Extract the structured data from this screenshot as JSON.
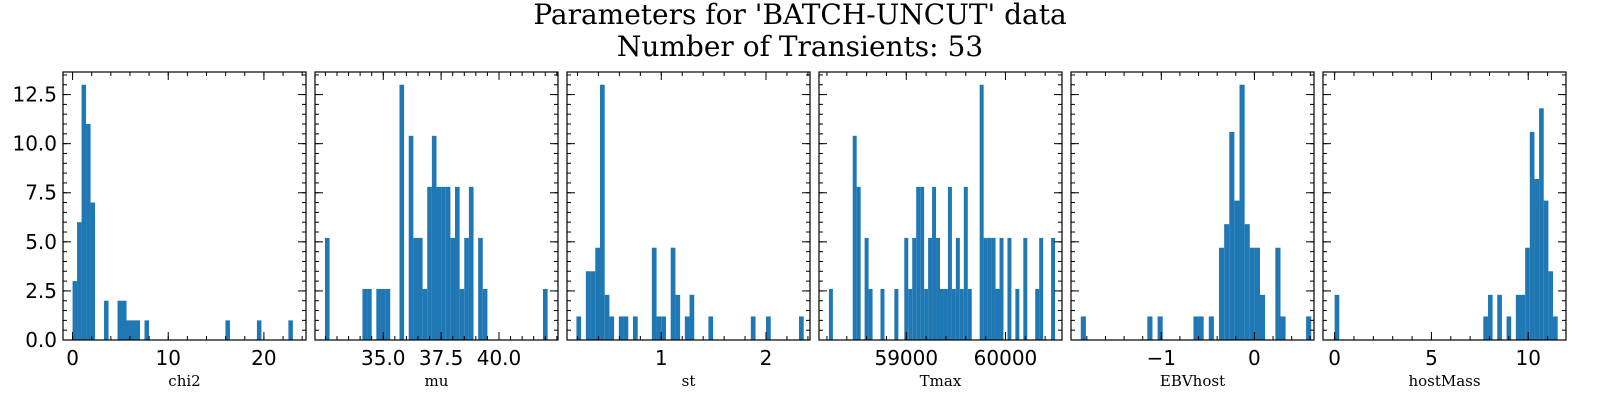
{
  "figure": {
    "title_line1": "Parameters for 'BATCH-UNCUT' data",
    "title_line2": "Number of Transients: 53"
  },
  "chart_data": [
    {
      "type": "bar",
      "xlabel": "chi2",
      "xlim": [
        -1.0,
        24.4
      ],
      "ylim": [
        0,
        13.65
      ],
      "xticks": [
        0,
        10,
        20
      ],
      "xtick_labels": [
        "0",
        "10",
        "20"
      ],
      "yticks": [
        0.0,
        2.5,
        5.0,
        7.5,
        10.0,
        12.5
      ],
      "ytick_labels": [
        "0.0",
        "2.5",
        "5.0",
        "7.5",
        "10.0",
        "12.5"
      ],
      "bins": [
        [
          0.0,
          0.47,
          3
        ],
        [
          0.47,
          0.94,
          6
        ],
        [
          0.94,
          1.41,
          13
        ],
        [
          1.41,
          1.88,
          11
        ],
        [
          1.88,
          2.35,
          7
        ],
        [
          3.29,
          3.76,
          2
        ],
        [
          4.7,
          5.17,
          2
        ],
        [
          5.17,
          5.64,
          2
        ],
        [
          5.64,
          6.11,
          1
        ],
        [
          6.11,
          6.58,
          1
        ],
        [
          6.58,
          7.05,
          1
        ],
        [
          7.52,
          7.99,
          1
        ],
        [
          15.98,
          16.45,
          1
        ],
        [
          19.27,
          19.74,
          1
        ],
        [
          22.56,
          23.03,
          1
        ]
      ]
    },
    {
      "type": "bar",
      "xlabel": "mu",
      "xlim": [
        32.05,
        42.55
      ],
      "ylim": [
        0,
        13.65
      ],
      "xticks": [
        35.0,
        37.5,
        40.0
      ],
      "xtick_labels": [
        "35.0",
        "37.5",
        "40.0"
      ],
      "yticks": [
        0.0,
        2.5,
        5.0,
        7.5,
        10.0,
        12.5
      ],
      "ytick_labels": [],
      "bins": [
        [
          32.48,
          32.68,
          5.2
        ],
        [
          34.1,
          34.3,
          2.6
        ],
        [
          34.3,
          34.5,
          2.6
        ],
        [
          34.7,
          34.9,
          2.6
        ],
        [
          34.9,
          35.1,
          2.6
        ],
        [
          35.1,
          35.3,
          2.6
        ],
        [
          35.7,
          35.9,
          13
        ],
        [
          36.1,
          36.3,
          10.4
        ],
        [
          36.3,
          36.5,
          5.2
        ],
        [
          36.5,
          36.7,
          5.2
        ],
        [
          36.7,
          36.9,
          2.6
        ],
        [
          36.9,
          37.1,
          7.8
        ],
        [
          37.1,
          37.3,
          10.4
        ],
        [
          37.3,
          37.5,
          7.8
        ],
        [
          37.5,
          37.7,
          7.8
        ],
        [
          37.7,
          37.9,
          7.8
        ],
        [
          37.9,
          38.1,
          5.2
        ],
        [
          38.1,
          38.3,
          7.8
        ],
        [
          38.3,
          38.5,
          2.6
        ],
        [
          38.5,
          38.7,
          5.2
        ],
        [
          38.7,
          38.9,
          7.8
        ],
        [
          39.1,
          39.3,
          5.2
        ],
        [
          39.3,
          39.5,
          2.6
        ],
        [
          41.9,
          42.1,
          2.6
        ]
      ]
    },
    {
      "type": "bar",
      "xlabel": "st",
      "xlim": [
        0.1,
        2.42
      ],
      "ylim": [
        0,
        13.65
      ],
      "xticks": [
        1,
        2
      ],
      "xtick_labels": [
        "1",
        "2"
      ],
      "yticks": [
        0.0,
        2.5,
        5.0,
        7.5,
        10.0,
        12.5
      ],
      "ytick_labels": [],
      "bins": [
        [
          0.19,
          0.235,
          1.2
        ],
        [
          0.28,
          0.325,
          3.5
        ],
        [
          0.325,
          0.37,
          3.5
        ],
        [
          0.37,
          0.415,
          4.7
        ],
        [
          0.415,
          0.46,
          13
        ],
        [
          0.46,
          0.505,
          2.3
        ],
        [
          0.505,
          0.55,
          1.2
        ],
        [
          0.595,
          0.64,
          1.2
        ],
        [
          0.64,
          0.685,
          1.2
        ],
        [
          0.73,
          0.775,
          1.2
        ],
        [
          0.91,
          0.955,
          4.7
        ],
        [
          0.955,
          1.0,
          1.2
        ],
        [
          1.0,
          1.045,
          1.2
        ],
        [
          1.09,
          1.135,
          4.7
        ],
        [
          1.135,
          1.18,
          2.3
        ],
        [
          1.225,
          1.27,
          1.2
        ],
        [
          1.27,
          1.315,
          2.3
        ],
        [
          1.45,
          1.495,
          1.2
        ],
        [
          1.855,
          1.9,
          1.2
        ],
        [
          2.0,
          2.045,
          1.2
        ],
        [
          2.315,
          2.36,
          1.2
        ]
      ]
    },
    {
      "type": "bar",
      "xlabel": "Tmax",
      "xlim": [
        58120,
        60570
      ],
      "ylim": [
        0,
        13.65
      ],
      "xticks": [
        59000,
        60000
      ],
      "xtick_labels": [
        "59000",
        "60000"
      ],
      "yticks": [
        0.0,
        2.5,
        5.0,
        7.5,
        10.0,
        12.5
      ],
      "ytick_labels": [],
      "bins": [
        [
          58220,
          58260,
          2.6
        ],
        [
          58460,
          58500,
          10.4
        ],
        [
          58500,
          58540,
          7.8
        ],
        [
          58580,
          58620,
          5.2
        ],
        [
          58620,
          58660,
          2.6
        ],
        [
          58740,
          58780,
          2.6
        ],
        [
          58880,
          58920,
          2.6
        ],
        [
          58980,
          59020,
          5.2
        ],
        [
          59020,
          59060,
          2.6
        ],
        [
          59060,
          59100,
          5.2
        ],
        [
          59100,
          59140,
          7.8
        ],
        [
          59140,
          59180,
          7.8
        ],
        [
          59180,
          59220,
          2.6
        ],
        [
          59220,
          59260,
          5.2
        ],
        [
          59260,
          59300,
          7.8
        ],
        [
          59300,
          59340,
          5.2
        ],
        [
          59340,
          59380,
          2.6
        ],
        [
          59380,
          59420,
          2.6
        ],
        [
          59420,
          59460,
          7.8
        ],
        [
          59460,
          59500,
          2.6
        ],
        [
          59500,
          59540,
          5.2
        ],
        [
          59540,
          59580,
          2.6
        ],
        [
          59580,
          59620,
          7.8
        ],
        [
          59620,
          59660,
          2.6
        ],
        [
          59740,
          59780,
          13
        ],
        [
          59780,
          59820,
          5.2
        ],
        [
          59820,
          59860,
          5.2
        ],
        [
          59860,
          59900,
          5.2
        ],
        [
          59900,
          59940,
          2.6
        ],
        [
          59940,
          59980,
          5.2
        ],
        [
          60020,
          60060,
          5.2
        ],
        [
          60100,
          60140,
          2.6
        ],
        [
          60180,
          60220,
          5.2
        ],
        [
          60300,
          60340,
          2.6
        ],
        [
          60340,
          60380,
          5.2
        ],
        [
          60460,
          60500,
          5.2
        ]
      ]
    },
    {
      "type": "bar",
      "xlabel": "EBVhost",
      "xlim": [
        -1.97,
        0.64
      ],
      "ylim": [
        0,
        13.65
      ],
      "xticks": [
        -1,
        0
      ],
      "xtick_labels": [
        "−1",
        "0"
      ],
      "yticks": [
        0.0,
        2.5,
        5.0,
        7.5,
        10.0,
        12.5
      ],
      "ytick_labels": [],
      "bins": [
        [
          -1.865,
          -1.81,
          1.2
        ],
        [
          -1.15,
          -1.095,
          1.2
        ],
        [
          -1.04,
          -0.985,
          1.2
        ],
        [
          -0.655,
          -0.6,
          1.2
        ],
        [
          -0.6,
          -0.545,
          1.2
        ],
        [
          -0.49,
          -0.435,
          1.2
        ],
        [
          -0.38,
          -0.325,
          4.7
        ],
        [
          -0.325,
          -0.27,
          5.9
        ],
        [
          -0.27,
          -0.215,
          10.6
        ],
        [
          -0.215,
          -0.16,
          7.1
        ],
        [
          -0.16,
          -0.105,
          13
        ],
        [
          -0.105,
          -0.05,
          5.9
        ],
        [
          -0.05,
          0.005,
          4.7
        ],
        [
          0.005,
          0.06,
          4.7
        ],
        [
          0.06,
          0.115,
          2.3
        ],
        [
          0.225,
          0.28,
          4.7
        ],
        [
          0.28,
          0.335,
          1.2
        ],
        [
          0.555,
          0.61,
          1.2
        ]
      ]
    },
    {
      "type": "bar",
      "xlabel": "hostMass",
      "xlim": [
        -0.6,
        11.95
      ],
      "ylim": [
        0,
        13.65
      ],
      "xticks": [
        0,
        5,
        10
      ],
      "xtick_labels": [
        "0",
        "5",
        "10"
      ],
      "yticks": [
        0.0,
        2.5,
        5.0,
        7.5,
        10.0,
        12.5
      ],
      "ytick_labels": [],
      "bins": [
        [
          0.0,
          0.24,
          2.3
        ],
        [
          7.68,
          7.92,
          1.2
        ],
        [
          7.92,
          8.16,
          2.3
        ],
        [
          8.4,
          8.64,
          2.3
        ],
        [
          8.88,
          9.12,
          1.2
        ],
        [
          9.36,
          9.6,
          2.3
        ],
        [
          9.6,
          9.84,
          2.3
        ],
        [
          9.84,
          10.08,
          4.7
        ],
        [
          10.08,
          10.32,
          10.6
        ],
        [
          10.32,
          10.56,
          8.2
        ],
        [
          10.56,
          10.8,
          11.8
        ],
        [
          10.8,
          11.04,
          7.1
        ],
        [
          11.04,
          11.28,
          3.5
        ],
        [
          11.28,
          11.52,
          1.2
        ]
      ]
    }
  ]
}
